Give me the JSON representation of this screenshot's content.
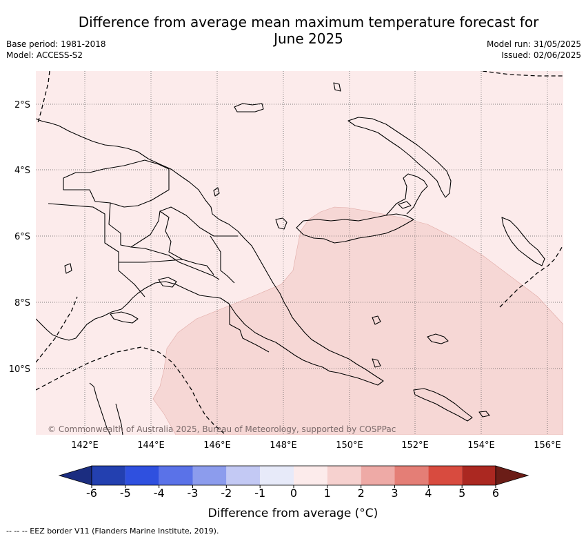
{
  "title": {
    "line1": "Difference from average mean maximum temperature forecast for",
    "line2": "June 2025"
  },
  "meta_left": {
    "base_period": "Base period: 1981-2018",
    "model": "Model: ACCESS-S2"
  },
  "meta_right": {
    "model_run": "Model run: 31/05/2025",
    "issued": "Issued: 02/06/2025"
  },
  "map": {
    "region": "Papua New Guinea",
    "lat_labels": [
      "2°S",
      "4°S",
      "6°S",
      "8°S",
      "10°S"
    ],
    "lon_labels": [
      "142°E",
      "144°E",
      "146°E",
      "148°E",
      "150°E",
      "152°E",
      "154°E",
      "156°E"
    ],
    "copyright": "© Commonwealth of Australia 2025, Bureau of Meteorology, supported by COSPPac",
    "background_anomaly_class": "0 to 1",
    "shaded_anomaly_class": "1 to 2"
  },
  "colorbar": {
    "title": "Difference from average (°C)",
    "ticks": [
      "-6",
      "-5",
      "-4",
      "-3",
      "-2",
      "-1",
      "0",
      "1",
      "2",
      "3",
      "4",
      "5",
      "6"
    ],
    "colors": [
      "#1b2d80",
      "#2340b0",
      "#2f50df",
      "#5a72e8",
      "#8c9ced",
      "#c3c9f4",
      "#e7eaf9",
      "#fcebeb",
      "#f6d1cf",
      "#eeaaa6",
      "#e47e76",
      "#d84b3f",
      "#ab2821",
      "#6b1d17"
    ]
  },
  "footnote": "-- -- -- EEZ border V11 (Flanders Marine Institute, 2019)."
}
